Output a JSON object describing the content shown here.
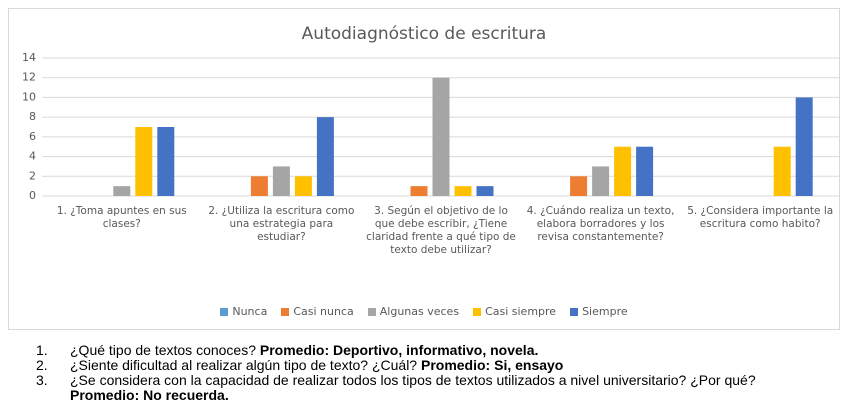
{
  "chart_data": {
    "type": "bar",
    "title": "Autodiagnóstico de escritura",
    "categories": [
      "1. ¿Toma apuntes en sus clases?",
      "2. ¿Utiliza la escritura como una estrategia para estudiar?",
      "3. Según el objetivo de lo que debe escribir, ¿Tiene claridad frente a qué tipo de texto debe utilizar?",
      "4. ¿Cuándo realiza un texto, elabora borradores y los revisa constantemente?",
      "5. ¿Considera importante la escritura como habito?"
    ],
    "series": [
      {
        "name": "Nunca",
        "color": "#5b9bd5",
        "values": [
          0,
          0,
          0,
          0,
          0
        ]
      },
      {
        "name": "Casi nunca",
        "color": "#ed7d31",
        "values": [
          0,
          2,
          1,
          2,
          0
        ]
      },
      {
        "name": "Algunas veces",
        "color": "#a5a5a5",
        "values": [
          1,
          3,
          12,
          3,
          0
        ]
      },
      {
        "name": "Casi siempre",
        "color": "#ffc000",
        "values": [
          7,
          2,
          1,
          5,
          5
        ]
      },
      {
        "name": "Siempre",
        "color": "#4472c4",
        "values": [
          7,
          8,
          1,
          5,
          10
        ]
      }
    ],
    "ylim": [
      0,
      14
    ],
    "yticks": [
      0,
      2,
      4,
      6,
      8,
      10,
      12,
      14
    ],
    "grid": true,
    "legend": "bottom"
  },
  "list": [
    {
      "number": "1.",
      "question": "¿Qué tipo de textos conoces?",
      "answer": "Promedio: Deportivo, informativo, novela."
    },
    {
      "number": "2.",
      "question": "¿Siente dificultad al realizar algún tipo de texto? ¿Cuál?",
      "answer": "Promedio: Si, ensayo"
    },
    {
      "number": "3.",
      "question": "¿Se considera con la capacidad de realizar todos los tipos de textos utilizados a nivel universitario? ¿Por qué?",
      "answer": "Promedio: No recuerda."
    }
  ]
}
